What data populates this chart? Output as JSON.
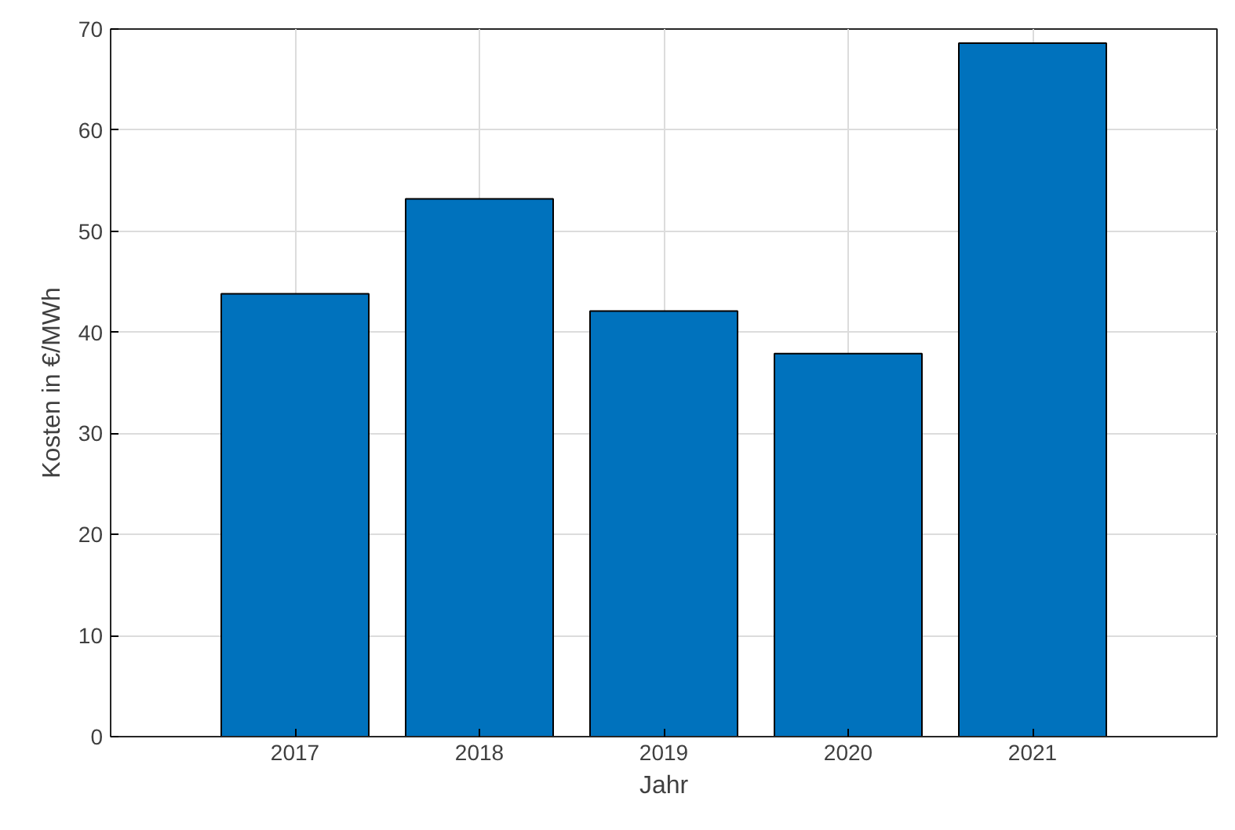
{
  "chart_data": {
    "type": "bar",
    "xlabel": "Jahr",
    "ylabel": "Kosten in €/MWh",
    "x": [
      2017,
      2018,
      2019,
      2020,
      2021
    ],
    "values": [
      43.8,
      53.2,
      42.1,
      37.9,
      68.6
    ],
    "color": "#0072bd",
    "xlim": [
      2016,
      2022
    ],
    "xticks": [
      2017,
      2018,
      2019,
      2020,
      2021
    ],
    "ylim": [
      0,
      70
    ],
    "yticks": [
      0,
      10,
      20,
      30,
      40,
      50,
      60,
      70
    ],
    "grid": true
  }
}
